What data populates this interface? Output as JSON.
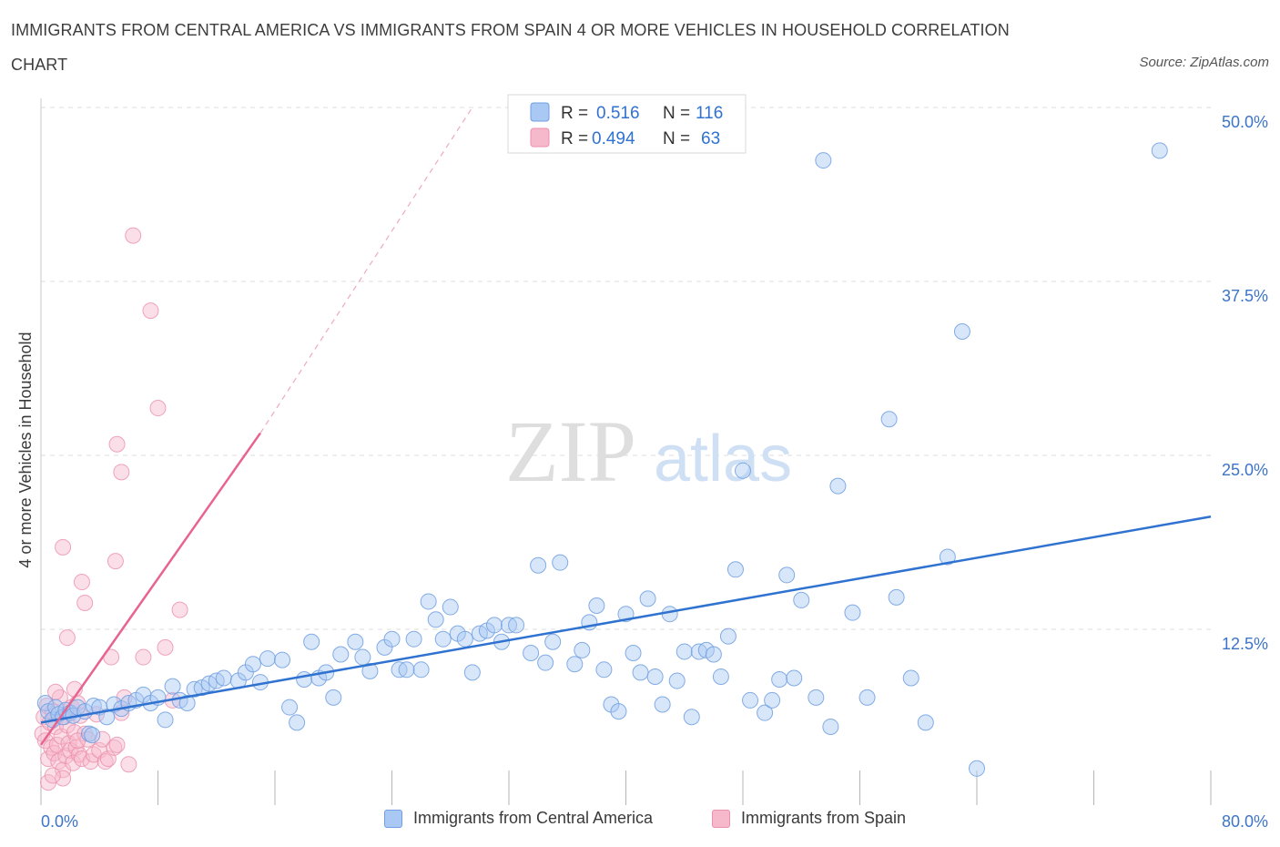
{
  "header": {
    "title": "IMMIGRANTS FROM CENTRAL AMERICA VS IMMIGRANTS FROM SPAIN 4 OR MORE VEHICLES IN HOUSEHOLD CORRELATION CHART",
    "source": "Source: ZipAtlas.com"
  },
  "watermark": {
    "zip": "ZIP",
    "atlas": "atlas"
  },
  "colors": {
    "blue_fill": "#a9c8f4",
    "blue_stroke": "#6f9fe0",
    "blue_line": "#2f72d0",
    "pink_fill": "#f6b9cb",
    "pink_stroke": "#ec8fab",
    "pink_line": "#e8638f",
    "axis_label": "#3d74c9",
    "grid": "#dcdcdc"
  },
  "legend_top": {
    "rows": [
      {
        "r_label": "R =",
        "r_value": "0.516",
        "n_label": "N =",
        "n_value": "116"
      },
      {
        "r_label": "R =",
        "r_value": "0.494",
        "n_label": "N =",
        "n_value": "63"
      }
    ]
  },
  "legend_bottom": {
    "items": [
      {
        "label": "Immigrants from Central America"
      },
      {
        "label": "Immigrants from Spain"
      }
    ]
  },
  "chart_data": {
    "type": "scatter",
    "title": "IMMIGRANTS FROM CENTRAL AMERICA VS IMMIGRANTS FROM SPAIN 4 OR MORE VEHICLES IN HOUSEHOLD CORRELATION CHART",
    "xlabel": "",
    "ylabel": "4 or more Vehicles in Household",
    "xlim": [
      0,
      80
    ],
    "ylim": [
      0,
      50
    ],
    "x_tick_labels": [
      "0.0%",
      "80.0%"
    ],
    "y_ticks": [
      12.5,
      25.0,
      37.5,
      50.0
    ],
    "y_tick_labels": [
      "12.5%",
      "25.0%",
      "37.5%",
      "50.0%"
    ],
    "grid": true,
    "legend_placement": "top-center",
    "series": [
      {
        "name": "Immigrants from Central America",
        "color": "#a9c8f4",
        "trendline": {
          "x": [
            0,
            80
          ],
          "y": [
            5.8,
            20.6
          ],
          "style": "solid"
        },
        "points": [
          [
            0.3,
            7.2
          ],
          [
            0.5,
            6.6
          ],
          [
            0.8,
            6.0
          ],
          [
            1.0,
            6.9
          ],
          [
            1.2,
            6.4
          ],
          [
            1.5,
            6.2
          ],
          [
            1.7,
            6.7
          ],
          [
            2.0,
            6.5
          ],
          [
            2.2,
            6.3
          ],
          [
            2.5,
            6.9
          ],
          [
            3.0,
            6.6
          ],
          [
            3.3,
            5.0
          ],
          [
            3.6,
            7.0
          ],
          [
            4.0,
            6.9
          ],
          [
            4.5,
            6.2
          ],
          [
            5.0,
            7.1
          ],
          [
            5.5,
            6.8
          ],
          [
            6.0,
            7.2
          ],
          [
            6.5,
            7.4
          ],
          [
            7.0,
            7.8
          ],
          [
            7.5,
            7.2
          ],
          [
            8.0,
            7.6
          ],
          [
            8.5,
            6.0
          ],
          [
            9.0,
            8.4
          ],
          [
            9.5,
            7.4
          ],
          [
            10.0,
            7.2
          ],
          [
            10.5,
            8.2
          ],
          [
            11.0,
            8.3
          ],
          [
            11.5,
            8.6
          ],
          [
            12.0,
            8.8
          ],
          [
            12.5,
            9.0
          ],
          [
            13.5,
            8.8
          ],
          [
            14.0,
            9.4
          ],
          [
            14.5,
            10.0
          ],
          [
            15.0,
            8.7
          ],
          [
            15.5,
            10.4
          ],
          [
            16.5,
            10.3
          ],
          [
            17.0,
            6.9
          ],
          [
            17.5,
            5.8
          ],
          [
            18.0,
            8.9
          ],
          [
            18.5,
            11.6
          ],
          [
            19.0,
            9.0
          ],
          [
            19.5,
            9.4
          ],
          [
            20.0,
            7.6
          ],
          [
            20.5,
            10.7
          ],
          [
            21.5,
            11.6
          ],
          [
            22.0,
            10.5
          ],
          [
            22.5,
            9.5
          ],
          [
            23.5,
            11.2
          ],
          [
            24.0,
            11.8
          ],
          [
            24.5,
            9.6
          ],
          [
            25.0,
            9.6
          ],
          [
            25.5,
            11.8
          ],
          [
            26.0,
            9.6
          ],
          [
            26.5,
            14.5
          ],
          [
            27.0,
            13.2
          ],
          [
            27.5,
            11.8
          ],
          [
            28.0,
            14.1
          ],
          [
            28.5,
            12.2
          ],
          [
            29.0,
            11.8
          ],
          [
            29.5,
            9.4
          ],
          [
            30.0,
            12.2
          ],
          [
            30.5,
            12.4
          ],
          [
            31.0,
            12.8
          ],
          [
            31.5,
            11.6
          ],
          [
            32.0,
            12.8
          ],
          [
            32.5,
            12.8
          ],
          [
            33.5,
            10.8
          ],
          [
            34.0,
            17.1
          ],
          [
            34.5,
            10.1
          ],
          [
            35.0,
            11.6
          ],
          [
            35.5,
            17.3
          ],
          [
            36.5,
            10.0
          ],
          [
            37.0,
            11.0
          ],
          [
            37.5,
            13.0
          ],
          [
            38.0,
            14.2
          ],
          [
            38.5,
            9.6
          ],
          [
            39.0,
            7.1
          ],
          [
            39.5,
            6.6
          ],
          [
            40.0,
            13.6
          ],
          [
            40.5,
            10.8
          ],
          [
            41.0,
            9.4
          ],
          [
            41.5,
            14.7
          ],
          [
            42.0,
            9.1
          ],
          [
            42.5,
            7.1
          ],
          [
            43.0,
            13.6
          ],
          [
            43.5,
            8.8
          ],
          [
            44.0,
            10.9
          ],
          [
            44.5,
            6.2
          ],
          [
            45.0,
            10.9
          ],
          [
            45.5,
            11.0
          ],
          [
            46.0,
            10.7
          ],
          [
            46.5,
            9.1
          ],
          [
            47.0,
            12.0
          ],
          [
            47.5,
            16.8
          ],
          [
            48.5,
            7.4
          ],
          [
            49.5,
            6.5
          ],
          [
            50.0,
            7.4
          ],
          [
            50.5,
            8.9
          ],
          [
            51.0,
            16.4
          ],
          [
            51.5,
            9.0
          ],
          [
            52.0,
            14.6
          ],
          [
            53.0,
            7.6
          ],
          [
            53.5,
            46.2
          ],
          [
            54.0,
            5.5
          ],
          [
            54.5,
            22.8
          ],
          [
            55.5,
            13.7
          ],
          [
            56.5,
            7.6
          ],
          [
            58.0,
            27.6
          ],
          [
            58.5,
            14.8
          ],
          [
            59.5,
            9.0
          ],
          [
            60.5,
            5.8
          ],
          [
            62.0,
            17.7
          ],
          [
            63.0,
            33.9
          ],
          [
            64.0,
            2.5
          ],
          [
            48.0,
            23.9
          ],
          [
            76.5,
            46.9
          ],
          [
            3.5,
            4.9
          ]
        ]
      },
      {
        "name": "Immigrants from Spain",
        "color": "#f6b9cb",
        "trendline": {
          "x": [
            0,
            15
          ],
          "y": [
            4.2,
            26.6
          ],
          "style": "solid",
          "extended_x": [
            15,
            29.5
          ],
          "extended_y": [
            26.6,
            50.0
          ],
          "extended_style": "dashed"
        },
        "points": [
          [
            0.1,
            5.0
          ],
          [
            0.2,
            6.2
          ],
          [
            0.3,
            4.5
          ],
          [
            0.4,
            7.0
          ],
          [
            0.5,
            3.2
          ],
          [
            0.6,
            5.8
          ],
          [
            0.7,
            4.0
          ],
          [
            0.8,
            6.6
          ],
          [
            0.9,
            3.6
          ],
          [
            1.0,
            5.5
          ],
          [
            1.1,
            4.2
          ],
          [
            1.2,
            3.0
          ],
          [
            1.3,
            7.6
          ],
          [
            1.4,
            4.8
          ],
          [
            1.5,
            2.4
          ],
          [
            1.6,
            6.2
          ],
          [
            1.7,
            3.4
          ],
          [
            1.8,
            5.6
          ],
          [
            1.9,
            4.3
          ],
          [
            2.0,
            3.8
          ],
          [
            2.1,
            6.9
          ],
          [
            2.2,
            2.9
          ],
          [
            2.3,
            5.1
          ],
          [
            2.4,
            4.0
          ],
          [
            2.5,
            7.2
          ],
          [
            2.6,
            3.5
          ],
          [
            2.7,
            6.3
          ],
          [
            2.8,
            3.2
          ],
          [
            3.0,
            5.0
          ],
          [
            3.2,
            4.6
          ],
          [
            3.4,
            3.0
          ],
          [
            3.6,
            3.5
          ],
          [
            3.8,
            6.4
          ],
          [
            4.0,
            3.8
          ],
          [
            4.2,
            4.6
          ],
          [
            4.4,
            3.0
          ],
          [
            4.6,
            3.2
          ],
          [
            4.8,
            10.5
          ],
          [
            5.0,
            4.0
          ],
          [
            5.2,
            4.2
          ],
          [
            5.5,
            6.5
          ],
          [
            5.7,
            7.6
          ],
          [
            6.0,
            2.8
          ],
          [
            6.3,
            40.8
          ],
          [
            7.0,
            10.5
          ],
          [
            7.5,
            35.4
          ],
          [
            8.0,
            28.4
          ],
          [
            8.5,
            11.2
          ],
          [
            9.5,
            13.9
          ],
          [
            5.5,
            23.8
          ],
          [
            5.2,
            25.8
          ],
          [
            5.1,
            17.4
          ],
          [
            1.5,
            18.4
          ],
          [
            2.8,
            15.9
          ],
          [
            3.0,
            14.4
          ],
          [
            1.8,
            11.9
          ],
          [
            2.3,
            8.2
          ],
          [
            1.0,
            8.0
          ],
          [
            0.5,
            1.5
          ],
          [
            1.5,
            1.8
          ],
          [
            9.0,
            7.4
          ],
          [
            2.5,
            4.5
          ],
          [
            0.8,
            2.0
          ]
        ]
      }
    ]
  }
}
